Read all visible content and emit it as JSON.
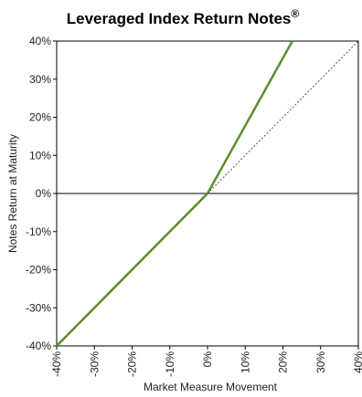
{
  "chart_data": {
    "type": "line",
    "title": "Leveraged Index Return Notes",
    "title_mark": "®",
    "xlabel": "Market Measure Movement",
    "ylabel": "Notes Return at Maturity",
    "xlim": [
      -40,
      40
    ],
    "ylim": [
      -40,
      40
    ],
    "x_ticks": [
      -40,
      -30,
      -20,
      -10,
      0,
      10,
      20,
      30,
      40
    ],
    "y_ticks": [
      40,
      30,
      20,
      10,
      0,
      -10,
      -20,
      -30,
      -40
    ],
    "x_tick_labels": [
      "-40%",
      "-30%",
      "-20%",
      "-10%",
      "0%",
      "10%",
      "20%",
      "30%",
      "40%"
    ],
    "y_tick_labels": [
      "40%",
      "30%",
      "20%",
      "10%",
      "0%",
      "-10%",
      "-20%",
      "-30%",
      "-40%"
    ],
    "grid": false,
    "series": [
      {
        "style": "solid",
        "color": "#5a8f2a",
        "x": [
          -40,
          0,
          22.5
        ],
        "y": [
          -40,
          0,
          40
        ]
      },
      {
        "style": "dotted",
        "color": "#555555",
        "x": [
          0,
          40
        ],
        "y": [
          0,
          40
        ]
      }
    ],
    "reference_line": {
      "y": 0,
      "color": "#000000"
    }
  }
}
